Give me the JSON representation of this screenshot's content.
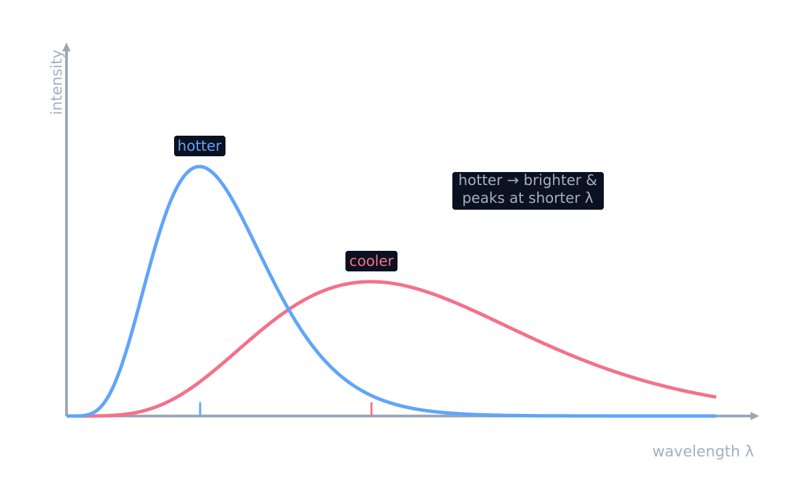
{
  "axes": {
    "y": "intensity",
    "x": "wavelength  λ"
  },
  "labels": {
    "hotter": "hotter",
    "cooler": "cooler"
  },
  "note": [
    "hotter → brighter &",
    "peaks at shorter λ"
  ]
}
